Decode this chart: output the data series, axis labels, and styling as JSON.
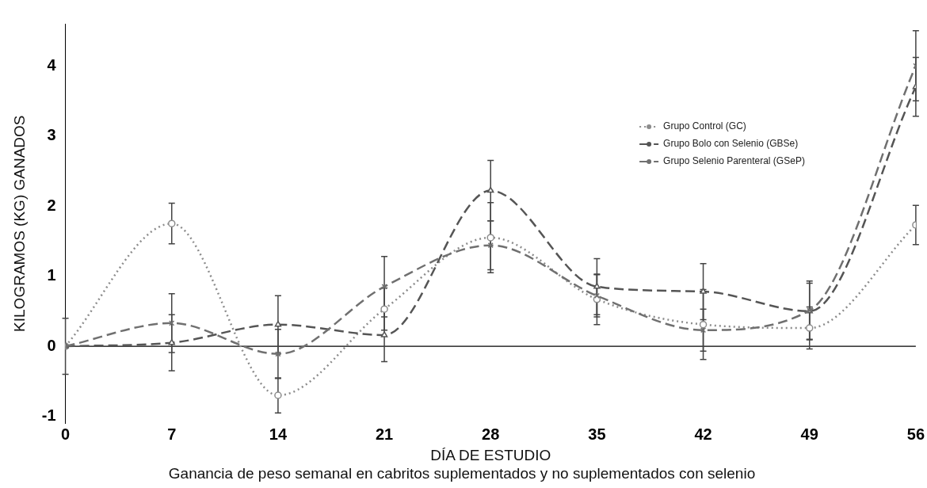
{
  "chart_data": {
    "type": "line",
    "title": "Ganancia de peso semanal en cabritos suplementados y no suplementados con selenio",
    "xlabel": "DÍA DE ESTUDIO",
    "ylabel": "KILOGRAMOS (KG) GANADOS",
    "x": [
      0,
      7,
      14,
      21,
      28,
      35,
      42,
      49,
      56
    ],
    "xlim": [
      0,
      56
    ],
    "xticks": [
      0,
      7,
      14,
      21,
      28,
      35,
      42,
      49,
      56
    ],
    "ylim": [
      -1.1,
      4.6
    ],
    "yticks": [
      -1,
      0,
      1,
      2,
      3,
      4
    ],
    "grid": false,
    "legend": "top right",
    "ref_lines": [
      {
        "axis": "y",
        "value": 0,
        "color": "#000000"
      }
    ],
    "series": [
      {
        "name": "Grupo Control (GC)",
        "color": "#8c8c8c",
        "marker": "circle",
        "line_style": "dotted",
        "values": [
          0,
          1.75,
          -0.7,
          0.53,
          1.55,
          0.67,
          0.31,
          0.26,
          1.73
        ],
        "errors": [
          null,
          0.29,
          0.25,
          0.3,
          0.5,
          0.36,
          0.5,
          0.3,
          0.28
        ]
      },
      {
        "name": "Grupo Bolo con Selenio (GBSe)",
        "color": "#555555",
        "marker": "triangle",
        "line_style": "dashed",
        "values": [
          0,
          0.05,
          0.31,
          0.16,
          2.22,
          0.85,
          0.78,
          0.5,
          3.7
        ],
        "errors": [
          0.4,
          0.4,
          0.41,
          0.38,
          0.43,
          0.4,
          0.4,
          0.4,
          0.42
        ]
      },
      {
        "name": "Grupo Selenio Parenteral (GSeP)",
        "color": "#707070",
        "marker": "cross",
        "line_style": "dashed",
        "values": [
          0,
          0.33,
          -0.11,
          0.85,
          1.44,
          0.72,
          0.23,
          0.51,
          4.0
        ],
        "errors": [
          null,
          0.42,
          0.35,
          0.43,
          0.35,
          0.3,
          0.3,
          0.42,
          0.5
        ]
      }
    ]
  }
}
